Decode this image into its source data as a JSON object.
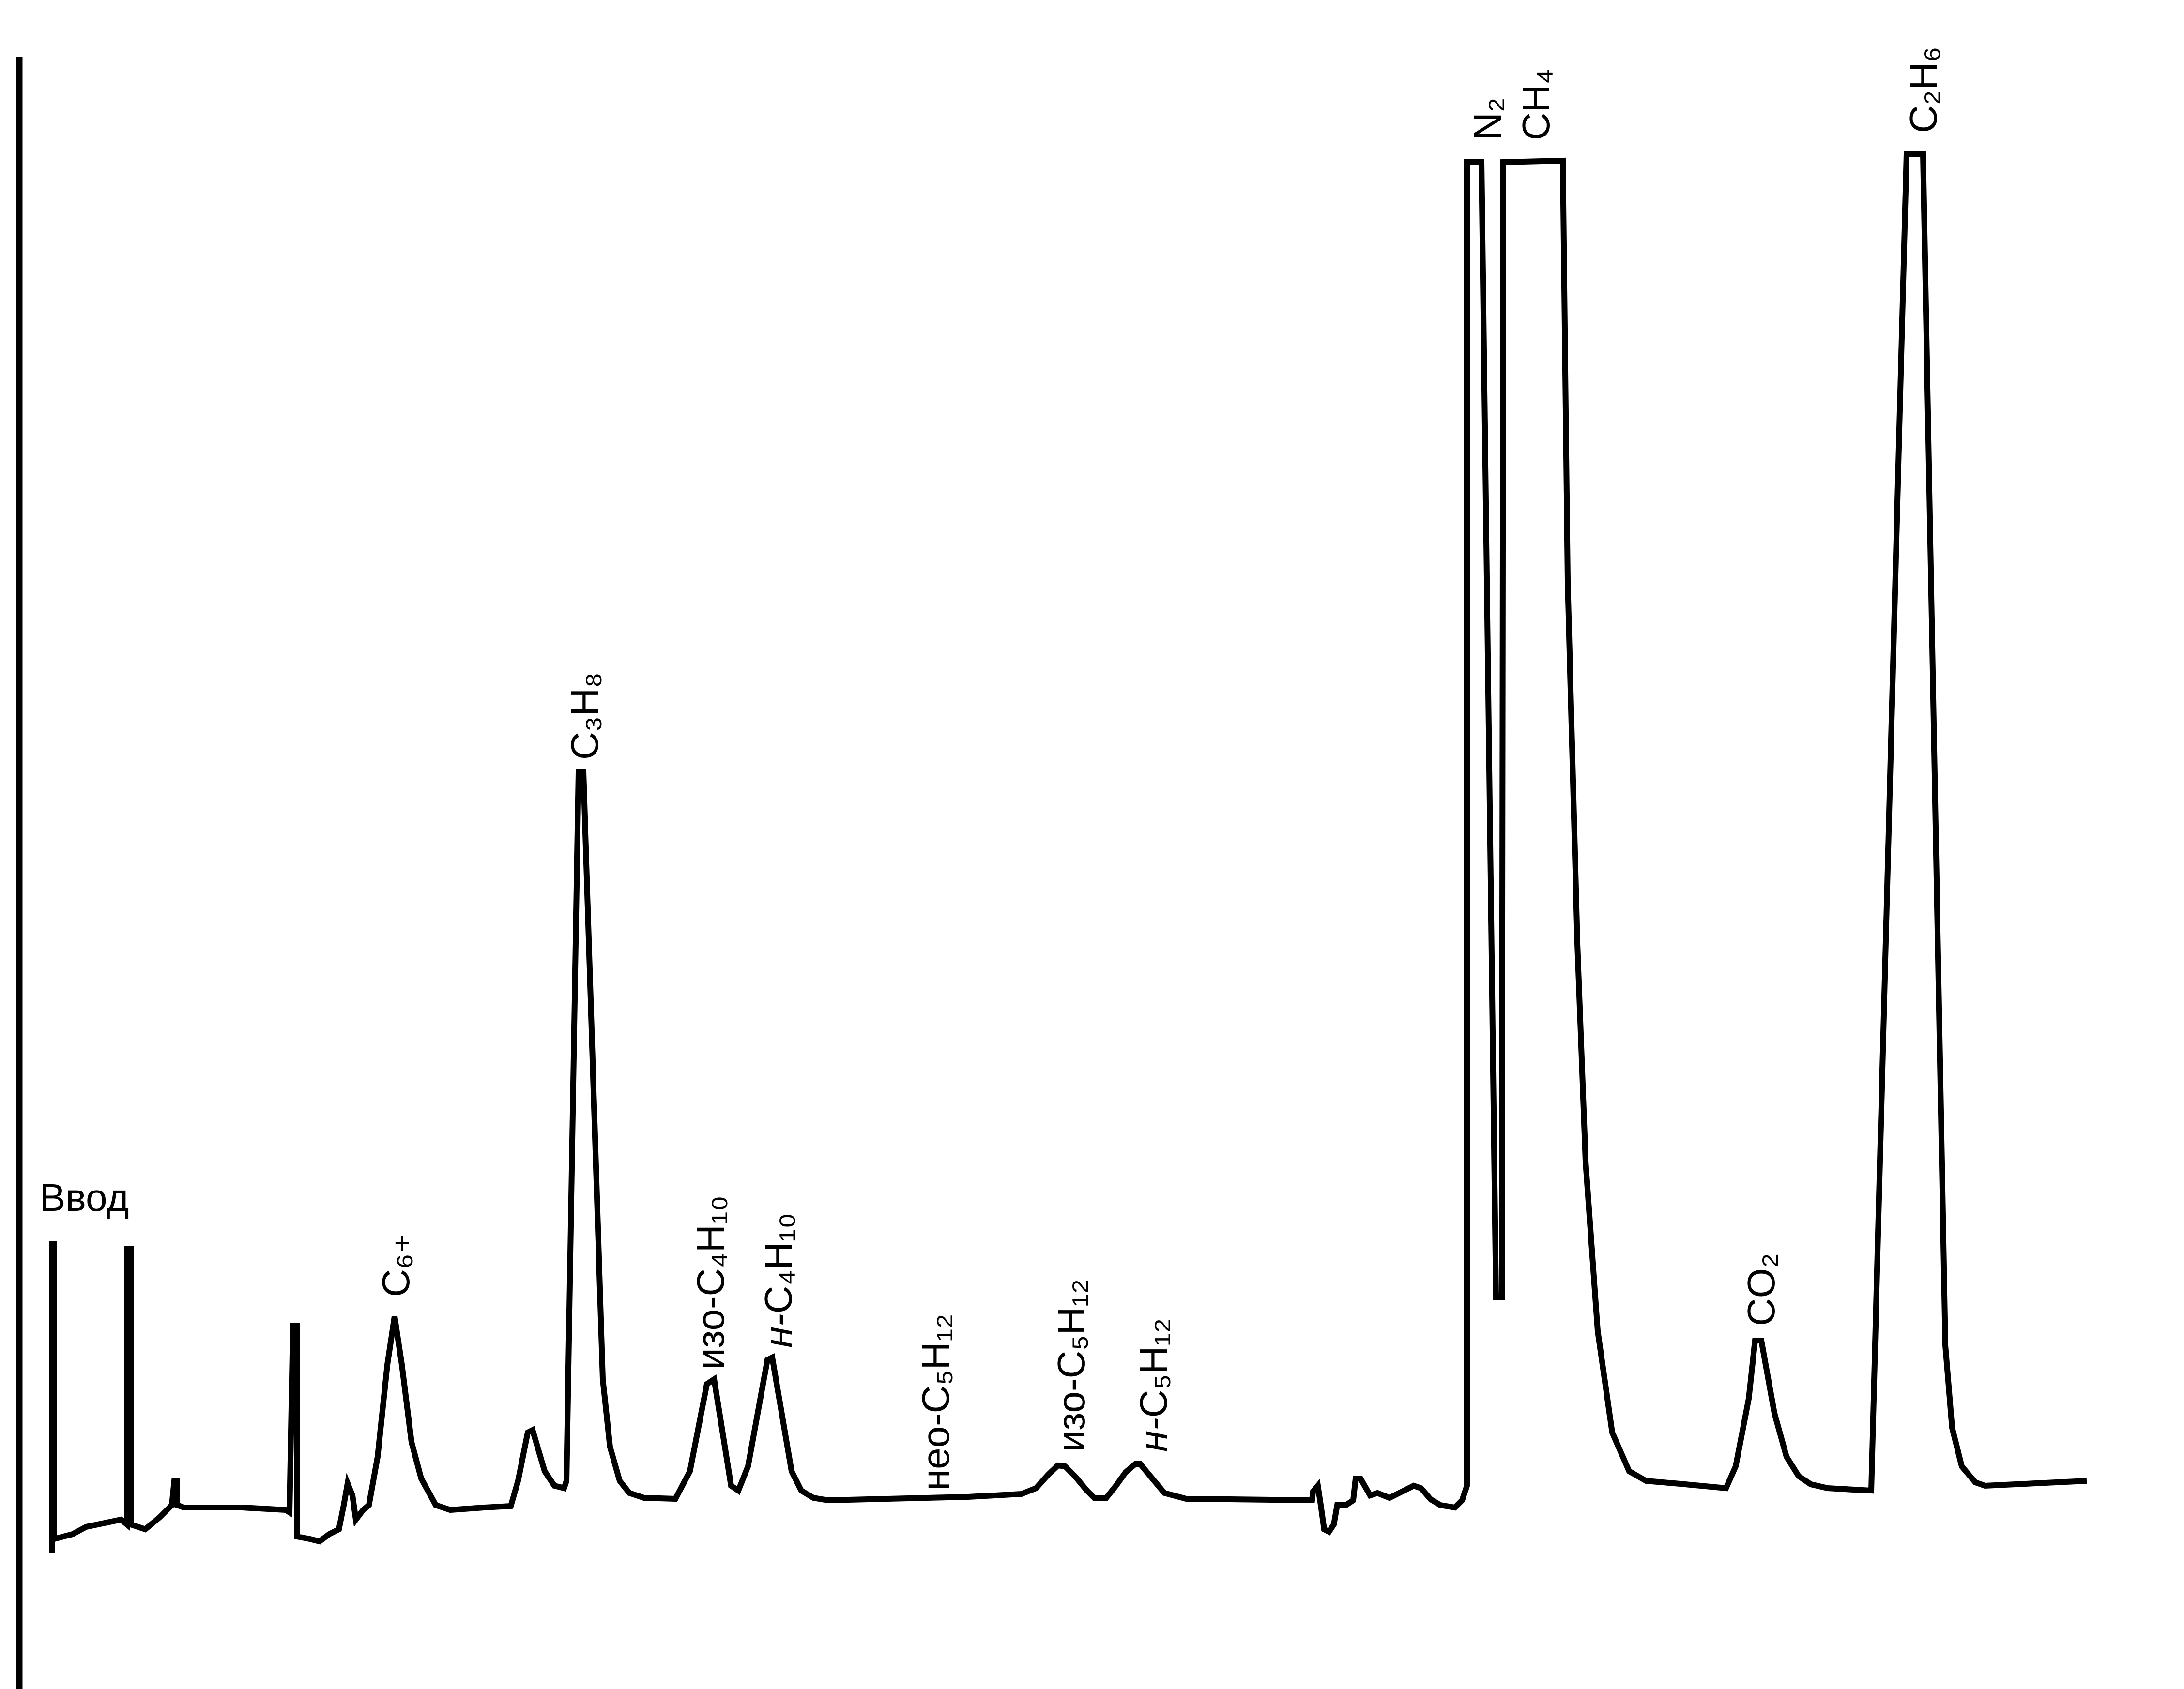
{
  "chart_data": {
    "type": "line",
    "title": "",
    "xlabel": "",
    "ylabel": "",
    "grid": false,
    "legend": "none",
    "line_color": "#000000",
    "annotations": [
      {
        "text": "Ввод",
        "orientation": "horizontal"
      },
      {
        "text": "C₆₊",
        "orientation": "vertical"
      },
      {
        "text": "C₃H₈",
        "orientation": "vertical"
      },
      {
        "prefix": "изо-",
        "text": "C₄H₁₀",
        "orientation": "vertical"
      },
      {
        "prefix": "н-",
        "text": "C₄H₁₀",
        "orientation": "vertical"
      },
      {
        "prefix": "нео-",
        "text": "C₅H₁₂",
        "orientation": "vertical"
      },
      {
        "prefix": "изо-",
        "text": "C₅H₁₂",
        "orientation": "vertical"
      },
      {
        "prefix": "н-",
        "text": "C₅H₁₂",
        "orientation": "vertical"
      },
      {
        "text": "N₂",
        "orientation": "vertical"
      },
      {
        "text": "CH₄",
        "orientation": "vertical"
      },
      {
        "text": "CO₂",
        "orientation": "vertical"
      },
      {
        "text": "C₂H₆",
        "orientation": "vertical"
      }
    ]
  }
}
